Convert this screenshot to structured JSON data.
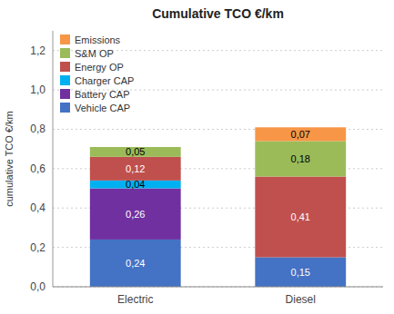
{
  "chart_data": {
    "type": "bar",
    "stacked": true,
    "title": "Cumulative TCO €/km",
    "y_label": "cumulative TCO €/km",
    "categories": [
      "Electric",
      "Diesel"
    ],
    "series": [
      {
        "name": "Vehicle CAP",
        "color": "#4472C4",
        "values": [
          0.24,
          0.15
        ],
        "value_labels": [
          "0,24",
          "0,15"
        ]
      },
      {
        "name": "Battery CAP",
        "color": "#7030A0",
        "values": [
          0.26,
          0.0
        ],
        "value_labels": [
          "0,26",
          null
        ]
      },
      {
        "name": "Charger CAP",
        "color": "#00B0F0",
        "values": [
          0.04,
          0.0
        ],
        "value_labels": [
          "0,04",
          null
        ]
      },
      {
        "name": "Energy OP",
        "color": "#C0504D",
        "values": [
          0.12,
          0.41
        ],
        "value_labels": [
          "0,12",
          "0,41"
        ]
      },
      {
        "name": "S&M OP",
        "color": "#9BBB59",
        "values": [
          0.05,
          0.18
        ],
        "value_labels": [
          "0,05",
          "0,18"
        ]
      },
      {
        "name": "Emissions",
        "color": "#F79646",
        "values": [
          0.0,
          0.07
        ],
        "value_labels": [
          null,
          "0,07"
        ]
      }
    ],
    "ylim": [
      0,
      1.3
    ],
    "yticks": [
      {
        "value": 0.0,
        "label": "0,0"
      },
      {
        "value": 0.2,
        "label": "0,2"
      },
      {
        "value": 0.4,
        "label": "0,4"
      },
      {
        "value": 0.6,
        "label": "0,6"
      },
      {
        "value": 0.8,
        "label": "0,8"
      },
      {
        "value": 1.0,
        "label": "1,0"
      },
      {
        "value": 1.2,
        "label": "1,2"
      }
    ],
    "grid": true,
    "legend": "upper left",
    "data_labels": true
  }
}
